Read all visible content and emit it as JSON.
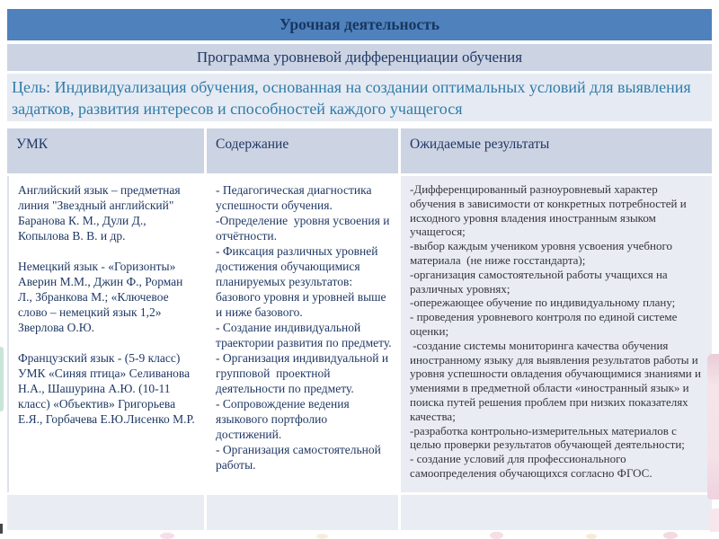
{
  "banners": {
    "title": "Урочная деятельность",
    "subtitle": "Программа уровневой дифференциации обучения",
    "goal": "Цель: Индивидуализация обучения, основанная на создании оптимальных условий для выявления задатков, развития интересов и способностей каждого учащегося"
  },
  "table": {
    "headers": [
      "УМК",
      "Содержание",
      "Ожидаемые результаты"
    ],
    "umk_text": "Английский язык – предметная линия \"Звездный английский\" Баранова К. М., Дули Д., Копылова В. В. и др.\n\nНемецкий язык - «Горизонты» Аверин М.М., Джин Ф., Рорман Л., Збранкова М.; «Ключевое слово – немецкий язык 1,2» Зверлова О.Ю.\n\nФранцузский язык - (5-9 класс) УМК «Синяя птица» Селиванова Н.А., Шашурина А.Ю. (10-11 класс) «Объектив» Григорьева Е.Я., Горбачева Е.Ю.Лисенко М.Р.",
    "content_text": "- Педагогическая диагностика успешности обучения.\n-Определение  уровня усвоения и отчётности.\n- Фиксация различных уровней достижения обучающимися планируемых результатов: базового уровня и уровней выше и ниже базового.\n- Создание индивидуальной траектории развития по предмету.\n- Организация индивидуальной и групповой  проектной деятельности по предмету.\n- Сопровождение ведения языкового портфолио достижений.\n- Организация самостоятельной работы.",
    "results_text": "-Дифференцированный разноуровневый характер обучения в зависимости от конкретных потребностей и исходного уровня владения иностранным языком учащегося;\n-выбор каждым учеником уровня усвоения учебного материала  (не ниже госстандарта);\n-организация самостоятельной работы учащихся на различных уровнях;\n-опережающее обучение по индивидуальному плану;\n- проведения уровневого контроля по единой системе оценки;\n -создание системы мониторинга качества обучения иностранному языку для выявления результатов работы и уровня успешности овладения обучающимися знаниями и умениями в предметной области «иностранный язык» и поиска путей решения проблем при низких показателях качества;\n-разработка контрольно-измерительных материалов с целью проверки результатов обучающей деятельности;\n- создание условий для профессионального самоопределения обучающихся согласно ФГОС."
  },
  "colors": {
    "banner_blue": "#4f81bd",
    "band_light": "#ccd3e3",
    "band_pale": "#e6eaf3",
    "navy": "#1f3864",
    "navy_dark": "#17375e",
    "teal": "#2e7ca9",
    "cell_shaded": "#e9ecf3"
  }
}
